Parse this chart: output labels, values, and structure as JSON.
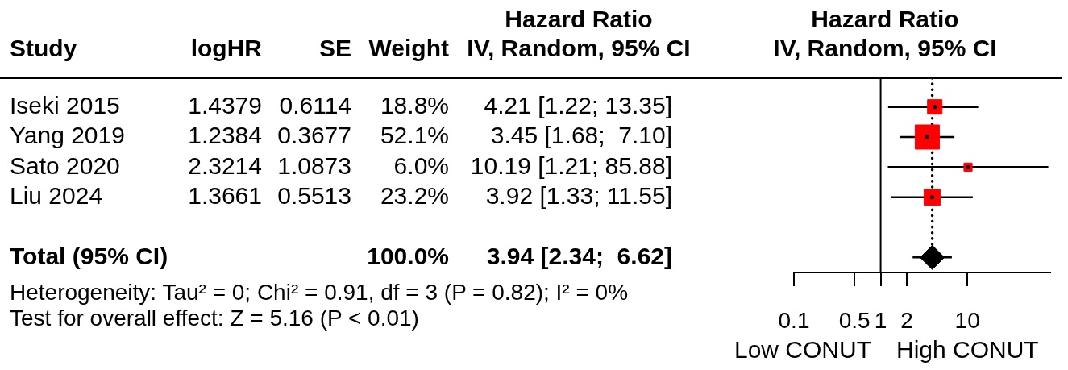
{
  "chart_data": {
    "type": "scatter",
    "orientation": "horizontal",
    "log": "x",
    "title": "Hazard Ratio",
    "subtitle": "IV, Random, 95% CI",
    "categories": [
      null,
      null,
      null,
      null,
      null,
      null
    ],
    "series": [
      {
        "color": "#ff0000",
        "marker": "square",
        "values": [
          4.21,
          3.45,
          10.19,
          3.92,
          null,
          null
        ],
        "errors": [
          [
            1.22,
            13.35
          ],
          [
            1.68,
            7.1
          ],
          [
            1.21,
            85.88
          ],
          [
            1.33,
            11.55
          ],
          null,
          null
        ],
        "sizes": [
          0.361,
          1,
          0.115,
          0.445,
          null,
          null
        ],
        "value_labels": [
          "4.21 [1.22; 13.35]",
          "3.45 [1.68;  7.10]",
          "10.19 [1.21; 85.88]",
          "3.92 [1.33; 11.55]",
          null,
          null
        ]
      },
      {
        "color": "#000000",
        "marker": "diamond",
        "values": [
          null,
          null,
          null,
          null,
          null,
          3.94
        ],
        "errors": [
          null,
          null,
          null,
          null,
          null,
          [
            2.34,
            6.62
          ]
        ]
      }
    ],
    "xlim": [
      0.1,
      90
    ],
    "xticks": [
      0.1,
      0.5,
      1,
      2,
      10
    ],
    "ref_lines": [
      {
        "axis": "x",
        "value": 1,
        "line_style": "solid"
      },
      {
        "axis": "x",
        "value": 3.94,
        "line_style": "dotted"
      }
    ],
    "annotations": [
      "Hazard Ratio",
      "Study",
      "logHR",
      "SE",
      "Weight",
      "IV, Random, 95% CI",
      "Iseki 2015",
      "1.4379",
      "0.6114",
      "18.8%",
      "Yang 2019",
      "1.2384",
      "0.3677",
      "52.1%",
      "Sato 2020",
      "2.3214",
      "1.0873",
      "6.0%",
      "Liu 2024",
      "1.3661",
      "0.5513",
      "23.2%",
      "Total (95% CI)",
      "100.0%",
      "3.94 [2.34;  6.62]",
      "Heterogeneity: Tau² = 0; Chi² = 0.91, df = 3 (P = 0.82); I² = 0%",
      "Test for overall effect: Z = 5.16 (P < 0.01)",
      "Low CONUT",
      "High CONUT"
    ]
  }
}
